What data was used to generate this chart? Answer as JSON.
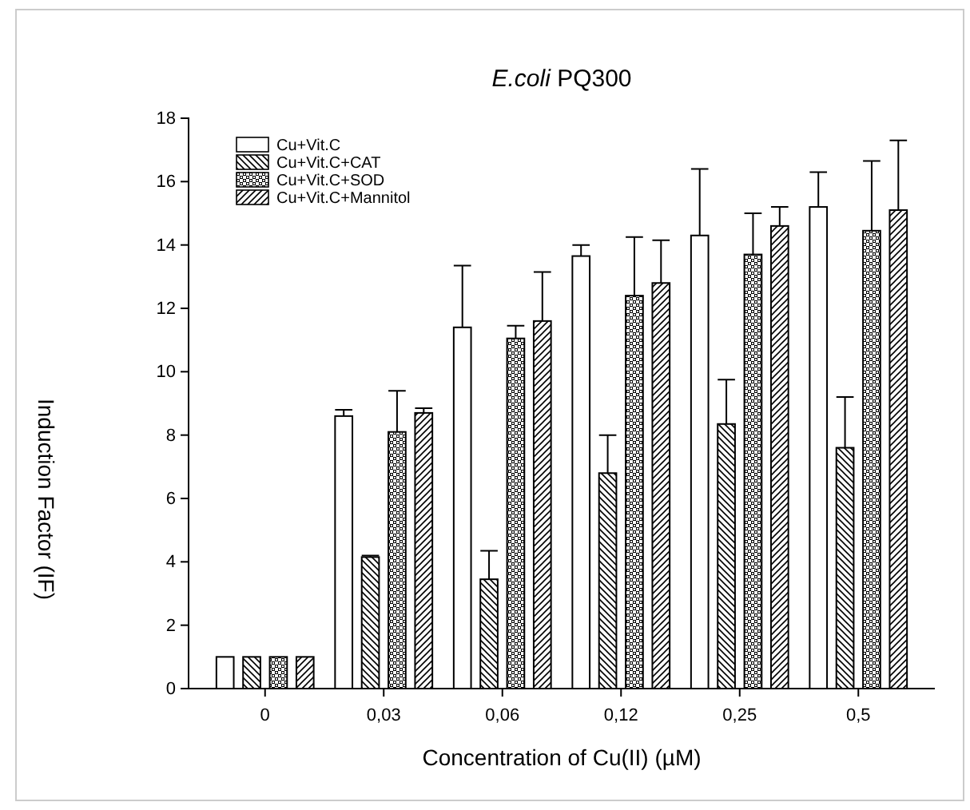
{
  "chart_data": {
    "type": "bar",
    "title": "E.coli PQ300",
    "xlabel": "Concentration of Cu(II)  (µM)",
    "ylabel": "Induction Factor (IF)",
    "categories": [
      "0",
      "0,03",
      "0,06",
      "0,12",
      "0,25",
      "0,5"
    ],
    "ylim": [
      0,
      18
    ],
    "yticks": [
      0,
      2,
      4,
      6,
      8,
      10,
      12,
      14,
      16,
      18
    ],
    "legend": "top left",
    "series": [
      {
        "name": "Cu+Vit.C",
        "color": "#ffffff",
        "values": [
          1,
          8.6,
          11.4,
          13.65,
          14.3,
          15.2
        ],
        "errors": [
          null,
          0.2,
          1.95,
          0.35,
          2.1,
          1.1
        ]
      },
      {
        "name": "Cu+Vit.C+CAT",
        "color": "#000000",
        "values": [
          1,
          4.15,
          3.45,
          6.8,
          8.35,
          7.6
        ],
        "errors": [
          null,
          0.05,
          0.9,
          1.2,
          1.4,
          1.6
        ]
      },
      {
        "name": "Cu+Vit.C+SOD",
        "color": "#000000",
        "values": [
          1,
          8.1,
          11.05,
          12.4,
          13.7,
          14.45
        ],
        "errors": [
          null,
          1.3,
          0.4,
          1.85,
          1.3,
          2.2
        ]
      },
      {
        "name": "Cu+Vit.C+Mannitol",
        "color": "#000000",
        "values": [
          1,
          8.7,
          11.6,
          12.8,
          14.6,
          15.1
        ],
        "errors": [
          null,
          0.15,
          1.55,
          1.35,
          0.6,
          2.2
        ]
      }
    ]
  }
}
